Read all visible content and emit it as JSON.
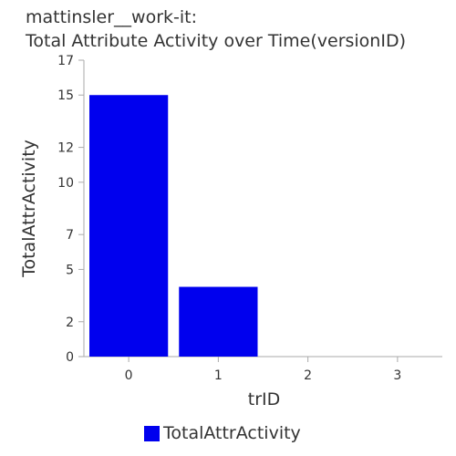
{
  "chart_data": {
    "type": "bar",
    "title_line1": "mattinsler__work-it:",
    "title_line2": "Total Attribute Activity over Time(versionID)",
    "xlabel": "trID",
    "ylabel": "TotalAttrActivity",
    "categories": [
      "0",
      "1",
      "2",
      "3"
    ],
    "series": [
      {
        "name": "TotalAttrActivity",
        "values": [
          15,
          4,
          0,
          0
        ],
        "color": "#0000ee"
      }
    ],
    "yticks": [
      "0",
      "2",
      "5",
      "7",
      "10",
      "12",
      "15",
      "17"
    ],
    "ylim": [
      0,
      17
    ],
    "grid": false,
    "legend": "bottom"
  }
}
